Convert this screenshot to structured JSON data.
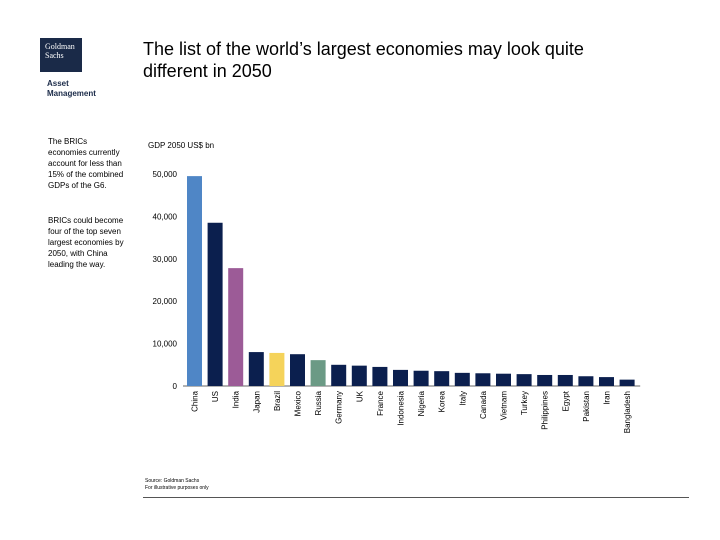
{
  "header": {
    "logo_text": "Goldman Sachs",
    "logo_sub_line1": "Asset",
    "logo_sub_line2": "Management",
    "title_line1": "The list of the world’s largest economies may look quite",
    "title_line2": "different in 2050"
  },
  "notes": {
    "note1": "The BRICs economies currently account for less than 15% of the combined GDPs of the G6.",
    "note2": "BRICs could become four of the top seven largest economies by 2050, with China leading the way."
  },
  "footer": {
    "source_line1": "Source: Goldman Sachs",
    "source_line2": "For illustrative purposes only"
  },
  "colors": {
    "navy": "#0b1f4e",
    "blue": "#4f86c6",
    "purple": "#9c5b97",
    "yellow": "#f5d35a",
    "green": "#6b9a85"
  },
  "chart_data": {
    "type": "bar",
    "title": "",
    "ylabel": "GDP 2050 US$ bn",
    "xlabel": "",
    "ylim": [
      0,
      50000
    ],
    "yticks": [
      0,
      10000,
      20000,
      30000,
      40000,
      50000
    ],
    "ytick_labels": [
      "0",
      "10,000",
      "20,000",
      "30,000",
      "40,000",
      "50,000"
    ],
    "grid": false,
    "legend": "none",
    "categories": [
      "China",
      "US",
      "India",
      "Japan",
      "Brazil",
      "Mexico",
      "Russia",
      "Germany",
      "UK",
      "France",
      "Indonesia",
      "Nigeria",
      "Korea",
      "Italy",
      "Canada",
      "Vietnam",
      "Turkey",
      "Philippines",
      "Egypt",
      "Pakistan",
      "Iran",
      "Bangladesh"
    ],
    "values": [
      49500,
      38500,
      27800,
      8000,
      7800,
      7500,
      6100,
      5000,
      4800,
      4500,
      3800,
      3600,
      3500,
      3100,
      3000,
      2900,
      2800,
      2600,
      2600,
      2300,
      2100,
      1500
    ],
    "bar_colors": [
      "#4f86c6",
      "#0b1f4e",
      "#9c5b97",
      "#0b1f4e",
      "#f5d35a",
      "#0b1f4e",
      "#6b9a85",
      "#0b1f4e",
      "#0b1f4e",
      "#0b1f4e",
      "#0b1f4e",
      "#0b1f4e",
      "#0b1f4e",
      "#0b1f4e",
      "#0b1f4e",
      "#0b1f4e",
      "#0b1f4e",
      "#0b1f4e",
      "#0b1f4e",
      "#0b1f4e",
      "#0b1f4e",
      "#0b1f4e"
    ]
  }
}
